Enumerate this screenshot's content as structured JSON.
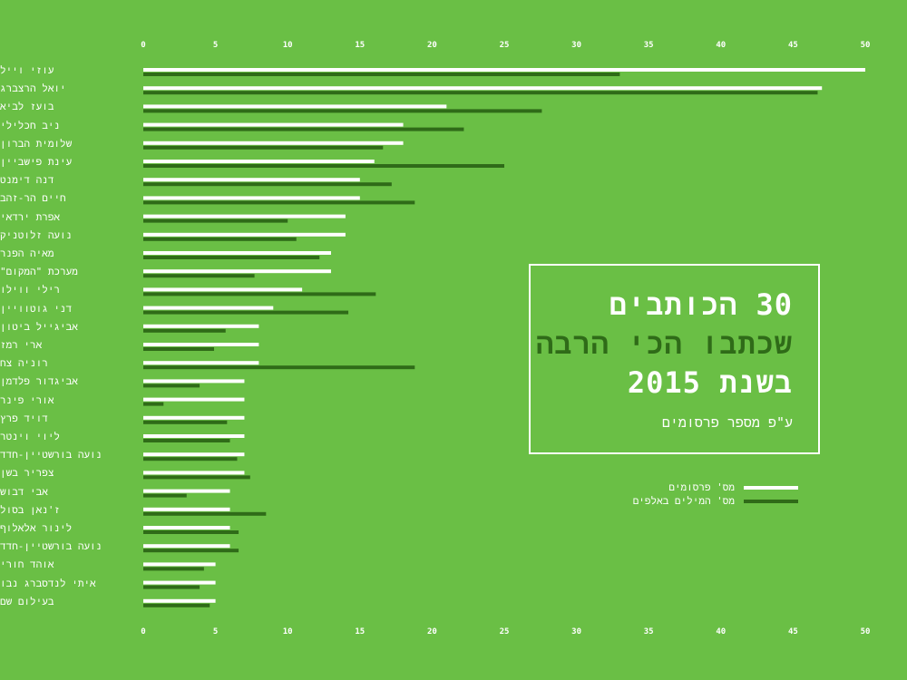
{
  "chart_data": {
    "type": "bar",
    "orientation": "horizontal",
    "title_lines": [
      "30 הכותבים",
      "שכתבו הכי הרבה",
      "בשנת 2015"
    ],
    "subtitle": "ע\"פ מספר פרסומים",
    "xlim": [
      0,
      50
    ],
    "x_ticks": [
      0,
      5,
      10,
      15,
      20,
      25,
      30,
      35,
      40,
      45,
      50
    ],
    "grid": false,
    "legend_position": "right",
    "categories": [
      "עוזי וייל",
      "יואל הרצברג",
      "בועז לביא",
      "ניב חכלילי",
      "שלומית הברון",
      "עינת פישביין",
      "דנה דימנט",
      "חיים הר-זהב",
      "אפרת ירדאי",
      "נועה זלוטניק",
      "מאיה הפנר",
      "מערכת \"המקום\"",
      "רילי ווילו",
      "דני גוטוויין",
      "אביגייל ביטון",
      "ארי רמז",
      "רוניה צח",
      "אביגדור פלדמן",
      "אורי פינר",
      "דויד פרץ",
      "ליוי וינטר",
      "נועה בורשטיין-חדד",
      "צפריר בשן",
      "אבי דבוש",
      "ז'נאן בסול",
      "לינור אלאלוף",
      "נועה בורשטיין-חדד",
      "אוהד חורי",
      "איתי לנדסברג נבו",
      "בעילום שם"
    ],
    "series": [
      {
        "name": "מס' פרסומים",
        "color": "#ffffff",
        "values": [
          50,
          47,
          21,
          18,
          18,
          16,
          15,
          15,
          14,
          14,
          13,
          13,
          11,
          9,
          8,
          8,
          8,
          7,
          7,
          7,
          7,
          7,
          7,
          6,
          6,
          6,
          6,
          5,
          5,
          5
        ]
      },
      {
        "name": "מס' המילים באלפים",
        "color": "#2f6b18",
        "values": [
          33,
          46.7,
          27.6,
          22.2,
          16.6,
          25,
          17.2,
          18.8,
          10,
          10.6,
          12.2,
          7.7,
          16.1,
          14.2,
          5.7,
          4.9,
          18.8,
          3.9,
          1.4,
          5.8,
          6,
          6.5,
          7.4,
          3,
          8.5,
          6.6,
          6.6,
          4.2,
          3.9,
          4.6
        ]
      }
    ]
  }
}
